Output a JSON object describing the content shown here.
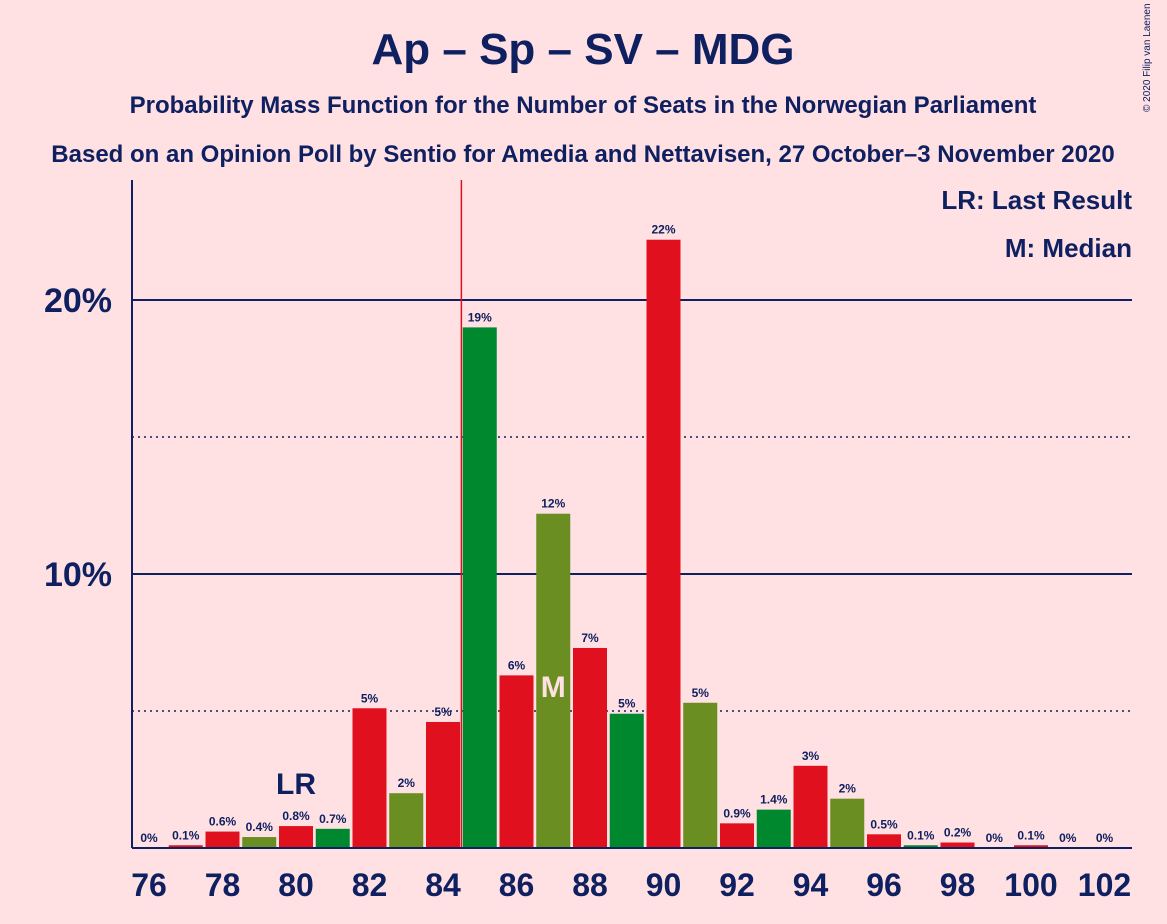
{
  "chart_data": {
    "type": "bar",
    "title": "Ap – Sp – SV – MDG",
    "subtitle": "Probability Mass Function for the Number of Seats in the Norwegian Parliament",
    "subtitle2": "Based on an Opinion Poll by Sentio for Amedia and Nettavisen, 27 October–3 November 2020",
    "credit": "© 2020 Filip van Laenen",
    "legend": {
      "lr": "LR: Last Result",
      "m": "M: Median"
    },
    "lr_label": "LR",
    "median_label": "M",
    "lr_seat": 80,
    "median_seat": 87,
    "majority_seat": 85,
    "ylim": [
      0,
      24
    ],
    "yticks": [
      {
        "value": 10,
        "label": "10%"
      },
      {
        "value": 20,
        "label": "20%"
      }
    ],
    "dotted_lines": [
      5,
      15
    ],
    "x_tick_labels": [
      "76",
      "78",
      "80",
      "82",
      "84",
      "86",
      "88",
      "90",
      "92",
      "94",
      "96",
      "98",
      "100",
      "102"
    ],
    "colors": {
      "red": "#e0101f",
      "green": "#00882e",
      "olive": "#6b8e23",
      "axis": "#0f2060",
      "majority": "#e0101f"
    },
    "bars": [
      {
        "seat": 76,
        "value": 0.0,
        "label": "0%",
        "color": "red"
      },
      {
        "seat": 77,
        "value": 0.1,
        "label": "0.1%",
        "color": "red"
      },
      {
        "seat": 78,
        "value": 0.6,
        "label": "0.6%",
        "color": "red"
      },
      {
        "seat": 79,
        "value": 0.4,
        "label": "0.4%",
        "color": "olive"
      },
      {
        "seat": 80,
        "value": 0.8,
        "label": "0.8%",
        "color": "red"
      },
      {
        "seat": 81,
        "value": 0.7,
        "label": "0.7%",
        "color": "green"
      },
      {
        "seat": 82,
        "value": 5.1,
        "label": "5%",
        "color": "red"
      },
      {
        "seat": 83,
        "value": 2.0,
        "label": "2%",
        "color": "olive"
      },
      {
        "seat": 84,
        "value": 4.6,
        "label": "5%",
        "color": "red"
      },
      {
        "seat": 85,
        "value": 19.0,
        "label": "19%",
        "color": "green"
      },
      {
        "seat": 86,
        "value": 6.3,
        "label": "6%",
        "color": "red"
      },
      {
        "seat": 87,
        "value": 12.2,
        "label": "12%",
        "color": "olive"
      },
      {
        "seat": 88,
        "value": 7.3,
        "label": "7%",
        "color": "red"
      },
      {
        "seat": 89,
        "value": 4.9,
        "label": "5%",
        "color": "green"
      },
      {
        "seat": 90,
        "value": 22.2,
        "label": "22%",
        "color": "red"
      },
      {
        "seat": 91,
        "value": 5.3,
        "label": "5%",
        "color": "olive"
      },
      {
        "seat": 92,
        "value": 0.9,
        "label": "0.9%",
        "color": "red"
      },
      {
        "seat": 93,
        "value": 1.4,
        "label": "1.4%",
        "color": "green"
      },
      {
        "seat": 94,
        "value": 3.0,
        "label": "3%",
        "color": "red"
      },
      {
        "seat": 95,
        "value": 1.8,
        "label": "2%",
        "color": "olive"
      },
      {
        "seat": 96,
        "value": 0.5,
        "label": "0.5%",
        "color": "red"
      },
      {
        "seat": 97,
        "value": 0.1,
        "label": "0.1%",
        "color": "green"
      },
      {
        "seat": 98,
        "value": 0.2,
        "label": "0.2%",
        "color": "red"
      },
      {
        "seat": 99,
        "value": 0.0,
        "label": "0%",
        "color": "olive"
      },
      {
        "seat": 100,
        "value": 0.1,
        "label": "0.1%",
        "color": "red"
      },
      {
        "seat": 101,
        "value": 0.0,
        "label": "0%",
        "color": "green"
      },
      {
        "seat": 102,
        "value": 0.0,
        "label": "0%",
        "color": "red"
      }
    ]
  }
}
